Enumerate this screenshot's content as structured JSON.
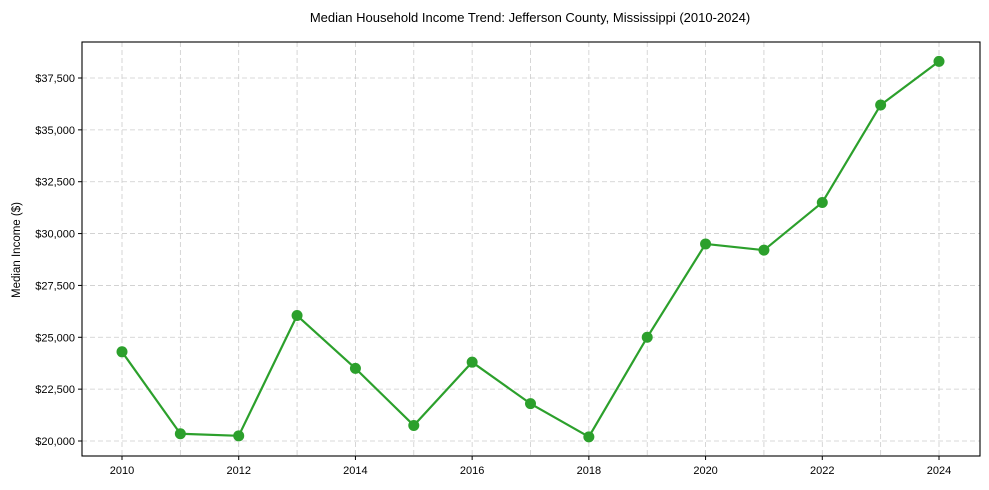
{
  "chart_data": {
    "type": "line",
    "title": "Median Household Income Trend: Jefferson County, Mississippi (2010-2024)",
    "xlabel": "",
    "ylabel": "Median Income ($)",
    "x": [
      2010,
      2011,
      2012,
      2013,
      2014,
      2015,
      2016,
      2017,
      2018,
      2019,
      2020,
      2021,
      2022,
      2023,
      2024
    ],
    "series": [
      {
        "name": "Median Household Income",
        "color": "#2ca02c",
        "values": [
          24300,
          20350,
          20250,
          26050,
          23500,
          20750,
          23800,
          21800,
          20200,
          25000,
          29500,
          29200,
          31500,
          36200,
          38300
        ]
      }
    ],
    "xticks": [
      2010,
      2012,
      2014,
      2016,
      2018,
      2020,
      2022,
      2024
    ],
    "xtick_labels": [
      "2010",
      "2012",
      "2014",
      "2016",
      "2018",
      "2020",
      "2022",
      "2024"
    ],
    "yticks": [
      20000,
      22500,
      25000,
      27500,
      30000,
      32500,
      35000,
      37500
    ],
    "ytick_labels": [
      "$20,000",
      "$22,500",
      "$25,000",
      "$27,500",
      "$30,000",
      "$32,500",
      "$35,000",
      "$37,500"
    ],
    "xlim": [
      2009.3,
      2024.75
    ],
    "ylim": [
      19400,
      39200
    ],
    "grid": true,
    "grid_style": "dashed",
    "legend": null,
    "marker": "circle"
  }
}
